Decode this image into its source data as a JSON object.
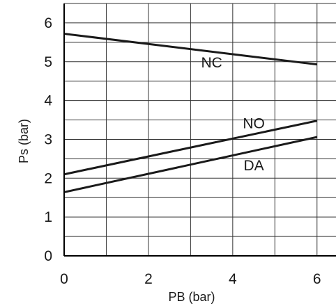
{
  "chart_data": {
    "type": "line",
    "title": "",
    "xlabel": "PB (bar)",
    "ylabel": "Ps (bar)",
    "xlim": [
      0,
      6.5
    ],
    "ylim": [
      0,
      6.5
    ],
    "xticks": [
      "0",
      "2",
      "4",
      "6"
    ],
    "yticks": [
      "0",
      "1",
      "2",
      "3",
      "4",
      "5",
      "6"
    ],
    "grid": true,
    "legend": "none",
    "series": [
      {
        "name": "NC",
        "x": [
          0,
          6
        ],
        "y": [
          5.72,
          4.93
        ]
      },
      {
        "name": "NO",
        "x": [
          0,
          6
        ],
        "y": [
          2.1,
          3.48
        ]
      },
      {
        "name": "DA",
        "x": [
          0,
          6
        ],
        "y": [
          1.64,
          3.06
        ]
      }
    ]
  }
}
